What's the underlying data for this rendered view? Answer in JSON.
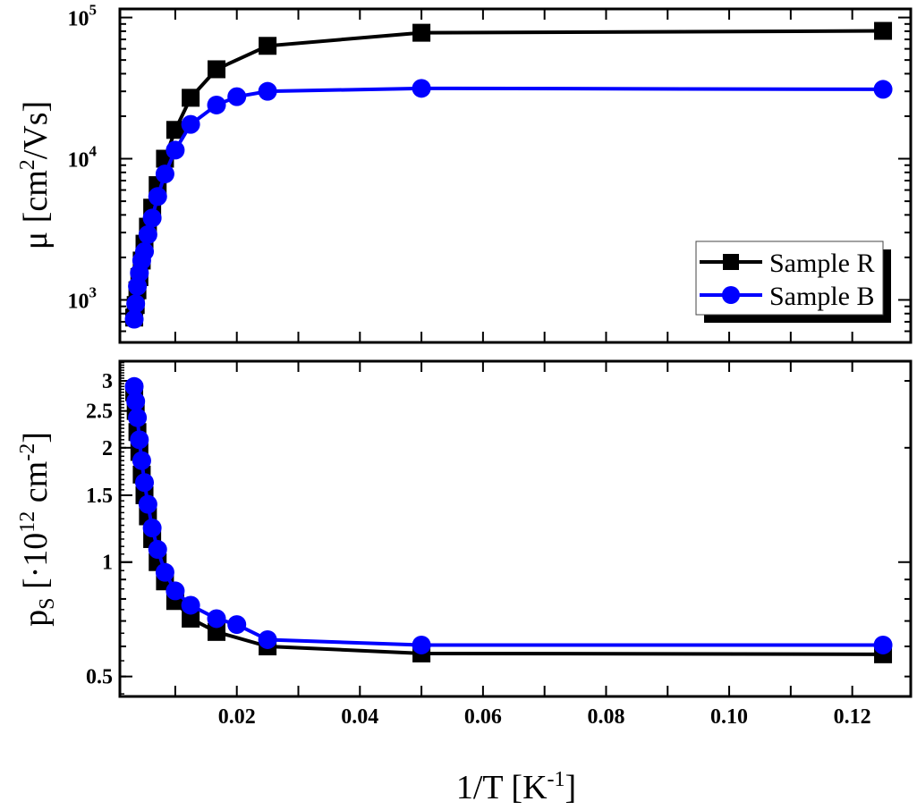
{
  "chart_data": [
    {
      "type": "line",
      "scale": "log-y",
      "ylabel": {
        "main": "μ [cm",
        "sup": "2",
        "rest": "/Vs]"
      },
      "ylim": [
        500,
        115000
      ],
      "xlim": [
        0.001,
        0.1295
      ],
      "yticks": [
        {
          "value": 1000,
          "base": "10",
          "exp": "3"
        },
        {
          "value": 10000,
          "base": "10",
          "exp": "4"
        },
        {
          "value": 100000,
          "base": "10",
          "exp": "5"
        }
      ],
      "legend": {
        "placement": "bottom-right",
        "entries": [
          "Sample R",
          "Sample B"
        ]
      },
      "series": [
        {
          "name": "Sample R",
          "color": "#000000",
          "marker": "square",
          "x": [
            0.00333,
            0.00357,
            0.00385,
            0.00417,
            0.00455,
            0.005,
            0.00556,
            0.00625,
            0.00714,
            0.00833,
            0.01,
            0.0125,
            0.0167,
            0.025,
            0.05,
            0.125
          ],
          "y": [
            750,
            920,
            1170,
            1450,
            1900,
            2500,
            3300,
            4500,
            6500,
            10000,
            16000,
            27000,
            43000,
            63000,
            78000,
            80400
          ]
        },
        {
          "name": "Sample B",
          "color": "#0000ff",
          "marker": "circle",
          "x": [
            0.00333,
            0.00357,
            0.00385,
            0.00417,
            0.00455,
            0.005,
            0.00556,
            0.00625,
            0.00714,
            0.00833,
            0.01,
            0.0125,
            0.0167,
            0.02,
            0.025,
            0.05,
            0.125
          ],
          "y": [
            730,
            940,
            1250,
            1550,
            1900,
            2200,
            2900,
            3800,
            5400,
            7800,
            11500,
            17500,
            24000,
            27500,
            30000,
            31500,
            31000
          ]
        }
      ]
    },
    {
      "type": "line",
      "scale": "log-y",
      "ylabel": {
        "main": "p",
        "sub": "S",
        "mid": " [·10",
        "sup": "12",
        "rest": " cm",
        "sup2": "-2",
        "end": "]"
      },
      "xlabel": {
        "main": "1/T [K",
        "sup": "-1",
        "end": "]"
      },
      "ylim": [
        0.443,
        3.38
      ],
      "xlim": [
        0.001,
        0.1295
      ],
      "yticks": [
        "0.5",
        "1",
        "1.5",
        "2",
        "2.5",
        "3"
      ],
      "xticks": [
        "0.02",
        "0.04",
        "0.06",
        "0.08",
        "0.10",
        "0.12"
      ],
      "series": [
        {
          "name": "Sample R",
          "color": "#000000",
          "marker": "square",
          "x": [
            0.00333,
            0.00357,
            0.00385,
            0.00417,
            0.00455,
            0.005,
            0.00556,
            0.00625,
            0.00714,
            0.00833,
            0.01,
            0.0125,
            0.0167,
            0.025,
            0.05,
            0.125
          ],
          "y": [
            2.8,
            2.5,
            2.2,
            1.95,
            1.7,
            1.5,
            1.32,
            1.15,
            1.0,
            0.89,
            0.79,
            0.71,
            0.655,
            0.6,
            0.575,
            0.572
          ]
        },
        {
          "name": "Sample B",
          "color": "#0000ff",
          "marker": "circle",
          "x": [
            0.00333,
            0.00357,
            0.00385,
            0.00417,
            0.00455,
            0.005,
            0.00556,
            0.00625,
            0.00714,
            0.00833,
            0.01,
            0.0125,
            0.0167,
            0.02,
            0.025,
            0.05,
            0.125
          ],
          "y": [
            2.9,
            2.65,
            2.4,
            2.1,
            1.85,
            1.62,
            1.42,
            1.23,
            1.08,
            0.94,
            0.84,
            0.77,
            0.71,
            0.685,
            0.625,
            0.605,
            0.605
          ]
        }
      ]
    }
  ]
}
